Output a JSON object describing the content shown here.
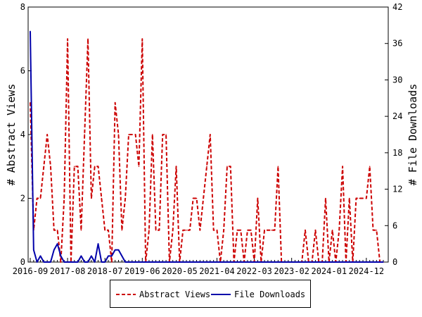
{
  "chart_data": {
    "type": "line",
    "x": [
      "2016-09",
      "2016-10",
      "2016-11",
      "2016-12",
      "2017-01",
      "2017-02",
      "2017-03",
      "2017-04",
      "2017-05",
      "2017-06",
      "2017-07",
      "2017-08",
      "2017-09",
      "2017-10",
      "2017-11",
      "2017-12",
      "2018-01",
      "2018-02",
      "2018-03",
      "2018-04",
      "2018-05",
      "2018-06",
      "2018-07",
      "2018-08",
      "2018-09",
      "2018-10",
      "2018-11",
      "2018-12",
      "2019-01",
      "2019-02",
      "2019-03",
      "2019-04",
      "2019-05",
      "2019-06",
      "2019-07",
      "2019-08",
      "2019-09",
      "2019-10",
      "2019-11",
      "2019-12",
      "2020-01",
      "2020-02",
      "2020-03",
      "2020-04",
      "2020-05",
      "2020-06",
      "2020-07",
      "2020-08",
      "2020-09",
      "2020-10",
      "2020-11",
      "2020-12",
      "2021-01",
      "2021-02",
      "2021-03",
      "2021-04",
      "2021-05",
      "2021-06",
      "2021-07",
      "2021-08",
      "2021-09",
      "2021-10",
      "2021-11",
      "2021-12",
      "2022-01",
      "2022-02",
      "2022-03",
      "2022-04",
      "2022-05",
      "2022-06",
      "2022-07",
      "2022-08",
      "2022-09",
      "2022-10",
      "2022-11",
      "2022-12",
      "2023-01",
      "2023-02",
      "2023-03",
      "2023-04",
      "2023-05",
      "2023-06",
      "2023-07",
      "2023-08",
      "2023-09",
      "2023-10",
      "2023-11",
      "2023-12",
      "2024-01",
      "2024-02",
      "2024-03",
      "2024-04",
      "2024-05",
      "2024-06",
      "2024-07",
      "2024-08",
      "2024-09",
      "2024-10",
      "2024-11",
      "2024-12",
      "2025-01",
      "2025-02",
      "2025-03",
      "2025-04",
      "2025-05"
    ],
    "xticks": [
      "2016-09",
      "2017-08",
      "2018-07",
      "2019-06",
      "2020-05",
      "2021-04",
      "2022-03",
      "2023-02",
      "2024-01",
      "2024-12"
    ],
    "series": [
      {
        "name": "Abstract Views",
        "axis": "left",
        "color": "#cc0000",
        "style": "dashed",
        "values": [
          5,
          1,
          2,
          2,
          3,
          4,
          3,
          1,
          1,
          0,
          2,
          7,
          0,
          3,
          3,
          1,
          4,
          7,
          2,
          3,
          3,
          2,
          1,
          1,
          0,
          5,
          4,
          1,
          2,
          4,
          4,
          4,
          3,
          7,
          0,
          1,
          4,
          1,
          1,
          4,
          4,
          0,
          1,
          3,
          0,
          1,
          1,
          1,
          2,
          2,
          1,
          2,
          3,
          4,
          1,
          1,
          0,
          1,
          3,
          3,
          0,
          1,
          1,
          0,
          1,
          1,
          0,
          2,
          0,
          1,
          1,
          1,
          1,
          3,
          0,
          0,
          0,
          0,
          0,
          0,
          0,
          1,
          0,
          0,
          1,
          0,
          0,
          2,
          0,
          1,
          0,
          1,
          3,
          0,
          2,
          0,
          2,
          2,
          2,
          2,
          3,
          1,
          1,
          0,
          0
        ]
      },
      {
        "name": "File Downloads",
        "axis": "right",
        "color": "#0000aa",
        "style": "solid",
        "values": [
          38,
          2,
          0,
          1,
          0,
          0,
          0,
          2,
          3,
          1,
          0,
          0,
          0,
          0,
          0,
          1,
          0,
          0,
          1,
          0,
          3,
          0,
          0,
          1,
          1,
          2,
          2,
          1,
          0,
          0,
          0,
          0,
          0,
          0,
          0,
          0,
          0,
          0,
          0,
          0,
          0,
          0,
          0,
          0,
          0,
          0,
          0,
          0,
          0,
          0,
          0,
          0,
          0,
          0,
          0,
          0,
          0,
          0,
          0,
          0,
          0,
          0,
          0,
          0,
          0,
          0,
          0,
          0,
          0,
          0,
          0,
          0,
          0,
          0,
          0,
          0,
          0,
          0,
          0,
          0,
          0,
          0,
          0,
          0,
          0,
          0,
          0,
          0,
          0,
          0,
          0,
          0,
          0,
          0,
          0,
          0,
          0,
          0,
          0,
          0,
          0,
          0,
          0,
          0,
          0
        ]
      }
    ],
    "ylabel": "# Abstract Views",
    "y2label": "# File Downloads",
    "ylim": [
      0,
      8
    ],
    "yticks": [
      0,
      2,
      4,
      6,
      8
    ],
    "y2lim": [
      0,
      42
    ],
    "y2ticks": [
      0,
      6,
      12,
      18,
      24,
      30,
      36,
      42
    ],
    "grid": false,
    "legend": "bottom"
  },
  "legend": {
    "views_label": "Abstract Views",
    "downloads_label": "File Downloads"
  }
}
